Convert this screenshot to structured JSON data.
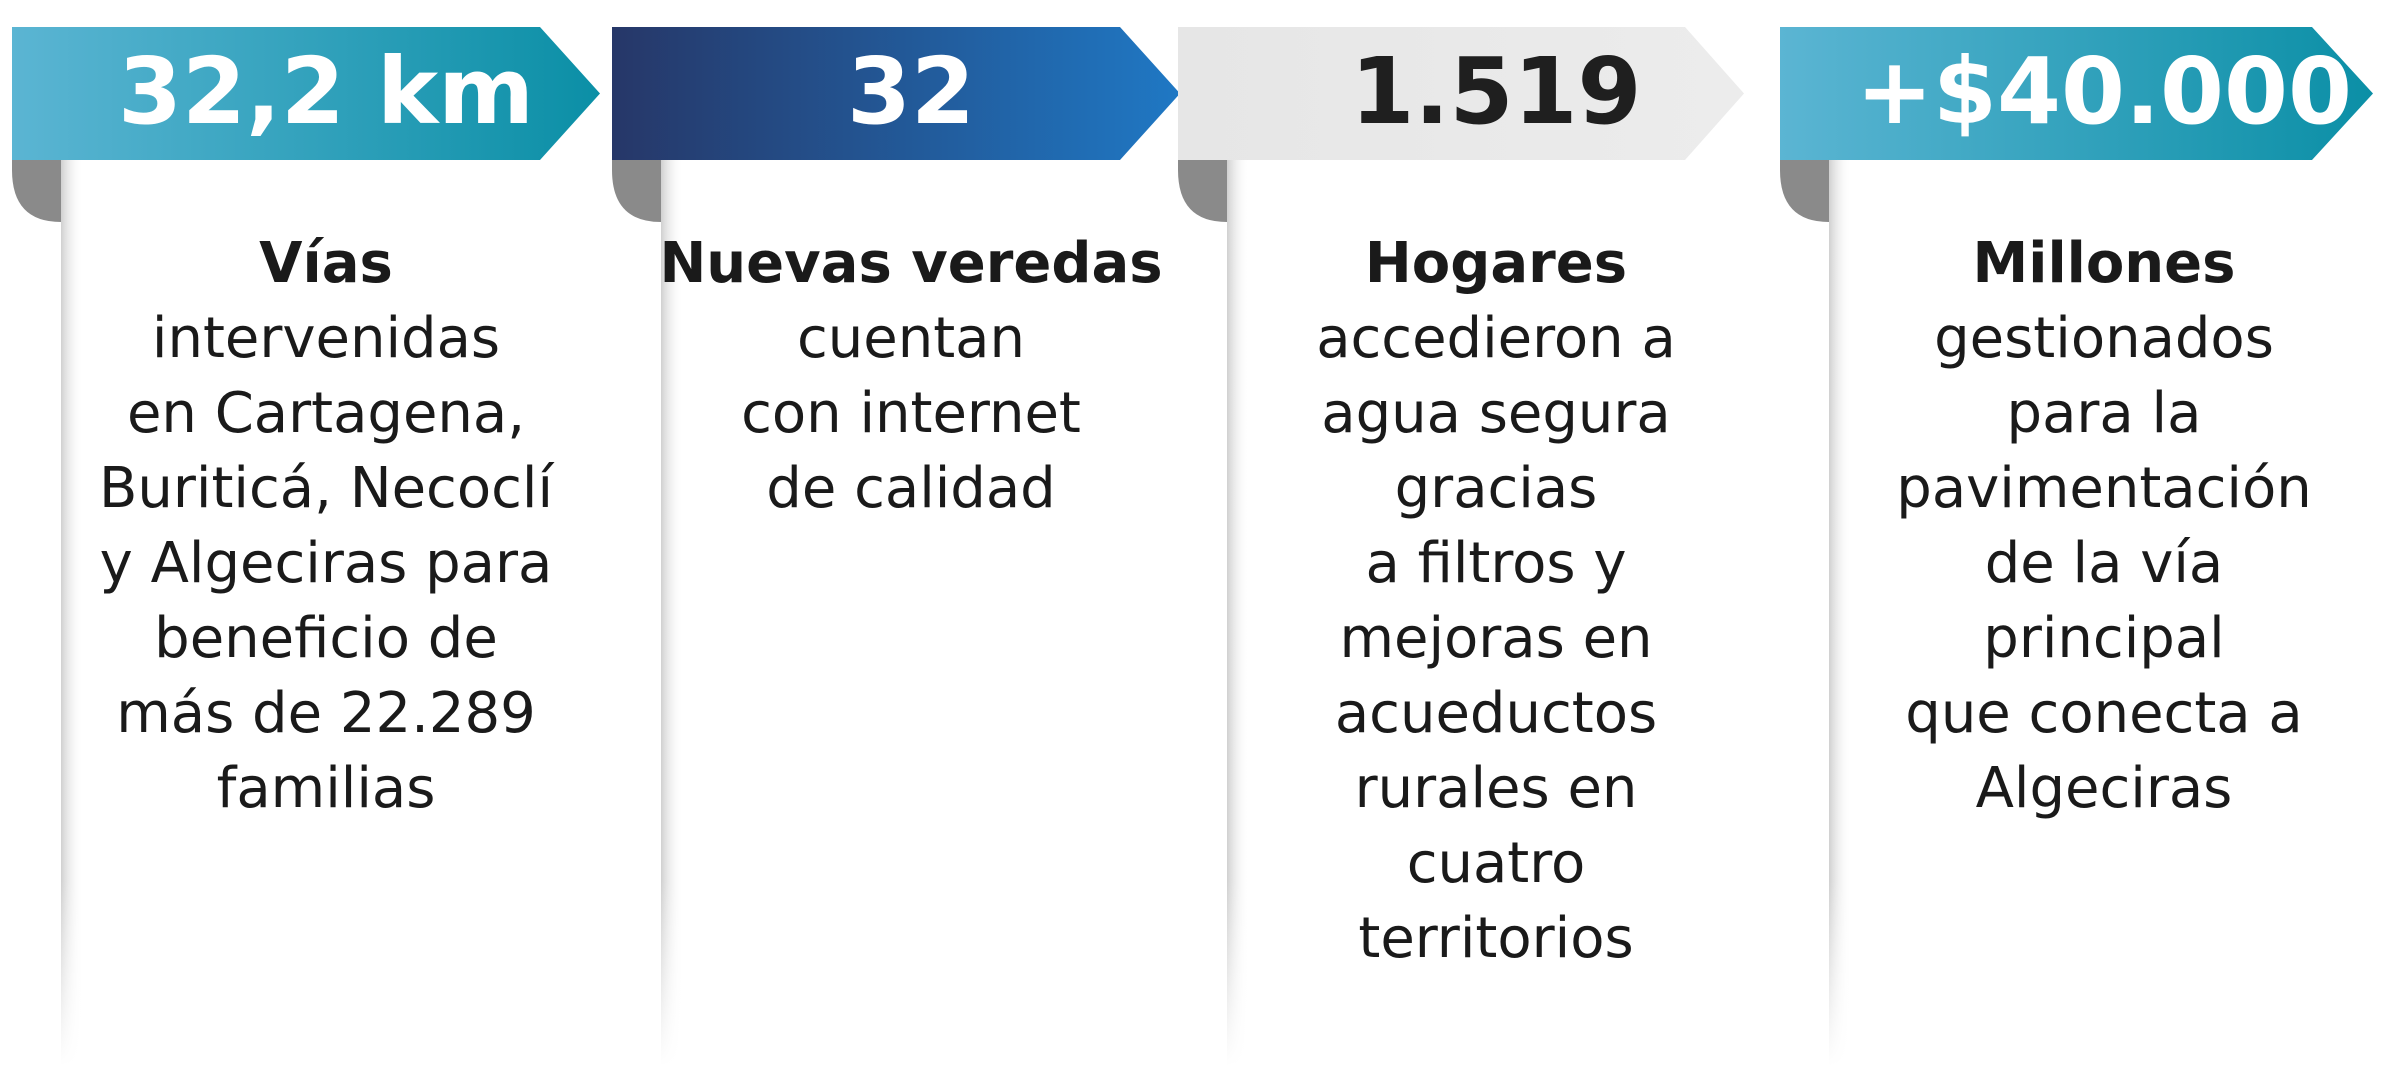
{
  "cards": [
    {
      "value": "32,2 km",
      "title": "Vías",
      "lines": [
        "intervenidas",
        "en Cartagena,",
        "Buriticá, Necoclí",
        "y Algeciras para",
        "beneficio de",
        "más de 22.289",
        "familias"
      ]
    },
    {
      "value": "32",
      "title": "Nuevas veredas",
      "lines": [
        "cuentan",
        "con internet",
        "de calidad"
      ]
    },
    {
      "value": "1.519",
      "title": "Hogares",
      "lines": [
        "accedieron a",
        "agua segura",
        "gracias",
        "a filtros y",
        "mejoras en",
        "acueductos",
        "rurales en",
        "cuatro",
        "territorios"
      ]
    },
    {
      "value": "+$40.000",
      "title": "Millones",
      "lines": [
        "gestionados",
        "para la",
        "pavimentación",
        "de la vía",
        "principal",
        "que conecta a",
        "Algeciras"
      ]
    }
  ]
}
